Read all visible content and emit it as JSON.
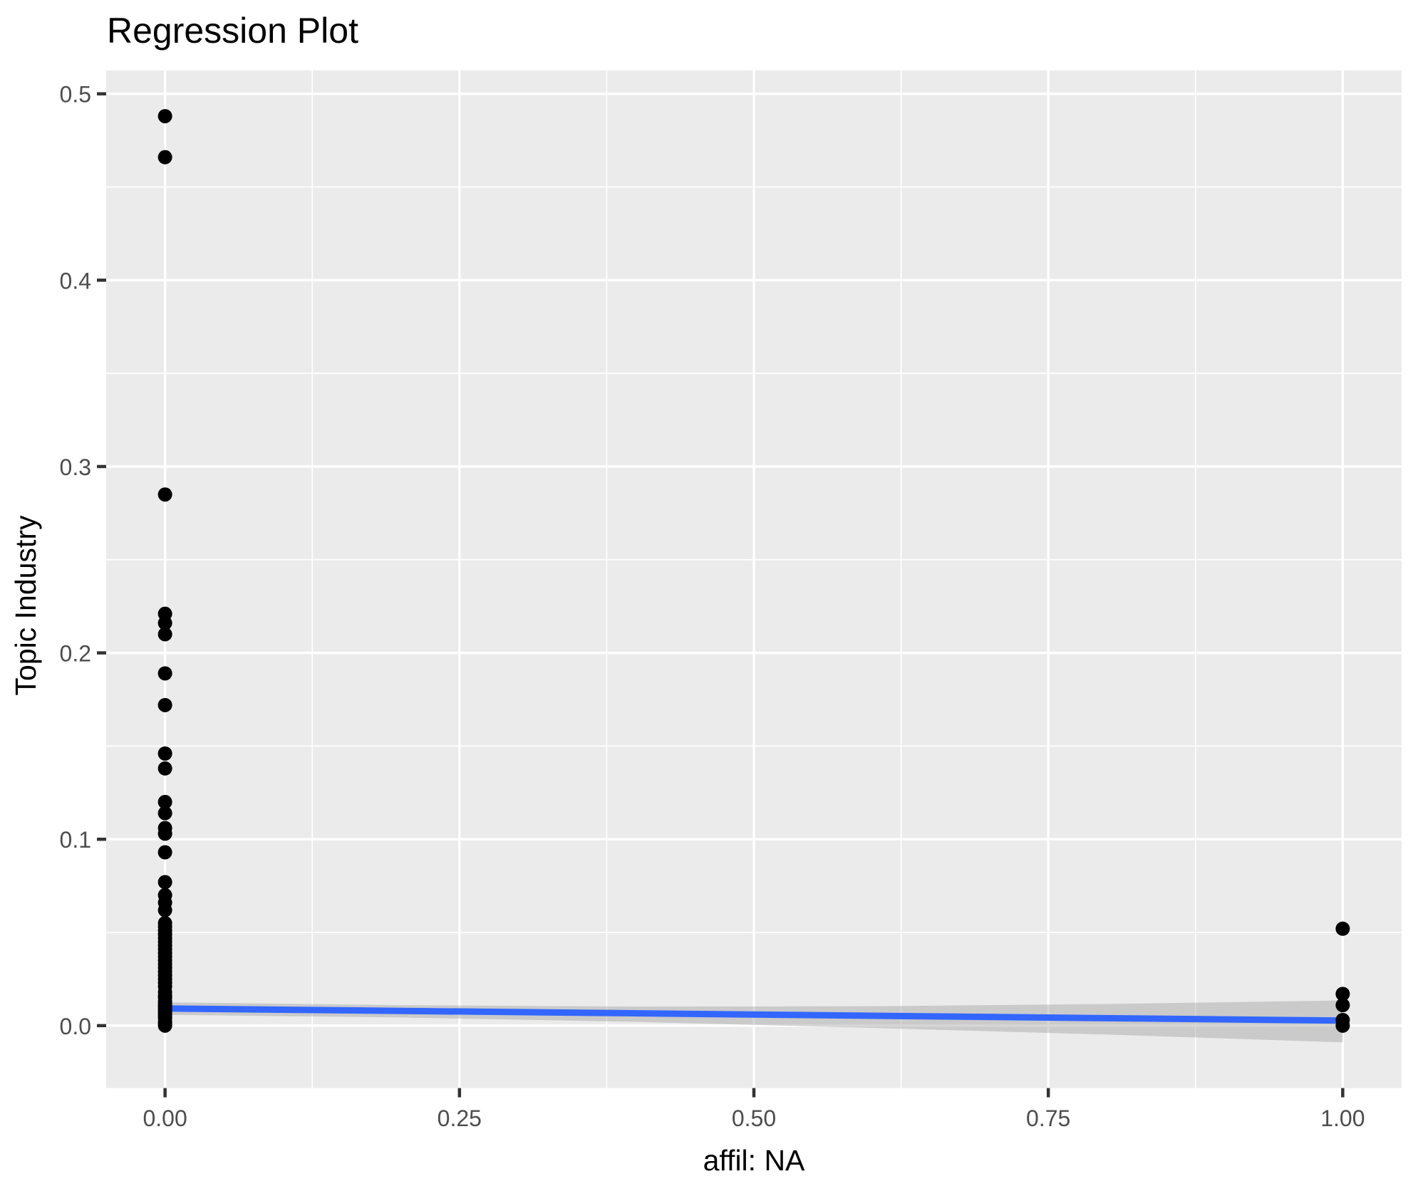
{
  "title": "Regression Plot",
  "colors": {
    "background": "#FFFFFF",
    "panel_bg": "#EBEBEB",
    "grid": "#FFFFFF",
    "point": "#000000",
    "smooth_line": "#3366FF",
    "ci_band": "#999999",
    "tick_label": "#4D4D4D",
    "tick_mark": "#333333",
    "title_color": "#000000"
  },
  "chart_data": {
    "type": "scatter",
    "title": "Regression Plot",
    "xlabel": "affil: NA",
    "ylabel": "Topic Industry",
    "legend": false,
    "grid": true,
    "xlim": [
      -0.05,
      1.05
    ],
    "ylim": [
      -0.0335,
      0.5125
    ],
    "x_tick_labels": [
      "0.00",
      "0.25",
      "0.50",
      "0.75",
      "1.00"
    ],
    "x_tick_values": [
      0,
      0.25,
      0.5,
      0.75,
      1
    ],
    "y_tick_labels": [
      "0.0",
      "0.1",
      "0.2",
      "0.3",
      "0.4",
      "0.5"
    ],
    "y_tick_values": [
      0,
      0.1,
      0.2,
      0.3,
      0.4,
      0.5
    ],
    "x_minor_gridlines": [
      0.125,
      0.375,
      0.625,
      0.875
    ],
    "y_minor_gridlines": [
      0.05,
      0.15,
      0.25,
      0.35,
      0.45
    ],
    "series": [
      {
        "name": "affil-0-points",
        "x": 0,
        "y": [
          0.488,
          0.466,
          0.285,
          0.221,
          0.216,
          0.21,
          0.189,
          0.172,
          0.146,
          0.138,
          0.12,
          0.114,
          0.106,
          0.103,
          0.093,
          0.077,
          0.07,
          0.066,
          0.062,
          0.055,
          0.053,
          0.051,
          0.049,
          0.047,
          0.045,
          0.043,
          0.041,
          0.039,
          0.037,
          0.035,
          0.033,
          0.031,
          0.029,
          0.027,
          0.025,
          0.023,
          0.021,
          0.018,
          0.016,
          0.015,
          0.013,
          0.012,
          0.011,
          0.01,
          0.009,
          0.008,
          0.007,
          0.006,
          0.005,
          0.004,
          0.002,
          0.001,
          0.0
        ]
      },
      {
        "name": "affil-1-points",
        "x": 1,
        "y": [
          0.052,
          0.017,
          0.011,
          0.003,
          0.0
        ]
      }
    ],
    "regression_line": {
      "x0": 0,
      "y0": 0.0092,
      "x1": 1,
      "y1": 0.0027
    },
    "confidence_band": {
      "x": [
        0,
        0.2,
        0.4,
        0.6,
        0.8,
        1
      ],
      "upper": [
        0.0125,
        0.011,
        0.0102,
        0.0104,
        0.0116,
        0.0135
      ],
      "lower": [
        0.0058,
        0.0044,
        0.002,
        -0.0012,
        -0.0048,
        -0.009
      ]
    }
  }
}
